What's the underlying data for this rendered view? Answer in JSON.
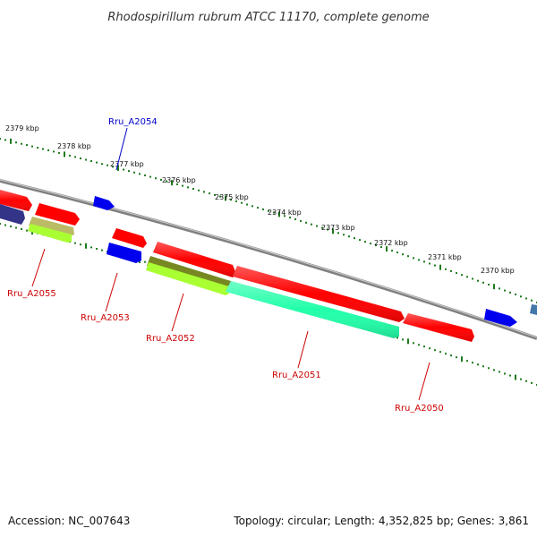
{
  "title": "Rhodospirillum rubrum ATCC 11170, complete genome",
  "footer": {
    "accession": "Accession: NC_007643",
    "summary": "Topology: circular; Length: 4,352,825 bp; Genes: 3,861"
  },
  "colors": {
    "backbone": "#808080",
    "tick": "#1e7a1e",
    "forward_label": "#0000cc",
    "reverse_label": "#cc0000",
    "red_gene": "#ff0000",
    "blue_gene": "#0000ee",
    "teal_gene": "#22ffaa",
    "lime_gene": "#aaff33",
    "olive_gene": "#778822",
    "khaki_gene": "#bbbb66",
    "navy_gene": "#333388",
    "steel_gene": "#4477aa"
  },
  "scale_labels": [
    "2379 kbp",
    "2378 kbp",
    "2377 kbp",
    "2376 kbp",
    "2375 kbp",
    "2374 kbp",
    "2373 kbp",
    "2372 kbp",
    "2371 kbp",
    "2370 kbp"
  ],
  "gene_labels": [
    {
      "text": "Rru_A2054",
      "strand": "forward"
    },
    {
      "text": "Rru_A2055",
      "strand": "reverse"
    },
    {
      "text": "Rru_A2053",
      "strand": "reverse"
    },
    {
      "text": "Rru_A2052",
      "strand": "reverse"
    },
    {
      "text": "Rru_A2051",
      "strand": "reverse"
    },
    {
      "text": "Rru_A2050",
      "strand": "reverse"
    }
  ]
}
